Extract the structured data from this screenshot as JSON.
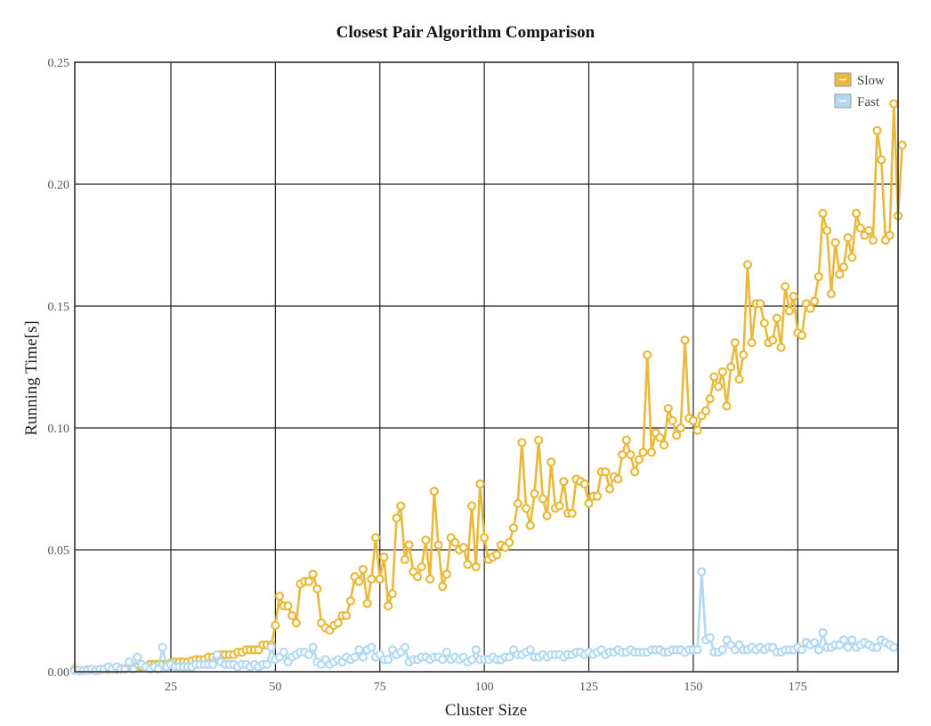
{
  "chart_data": {
    "type": "line",
    "title": "Closest Pair Algorithm Comparison",
    "xlabel": "Cluster Size",
    "ylabel": "Running Time[s]",
    "xlim": [
      2,
      199
    ],
    "ylim": [
      0,
      0.25
    ],
    "x_ticks": [
      25,
      50,
      75,
      100,
      125,
      150,
      175
    ],
    "y_ticks": [
      0,
      0.05,
      0.1,
      0.15,
      0.2,
      0.25
    ],
    "y_tick_labels": [
      "0.00",
      "0.05",
      "0.10",
      "0.15",
      "0.20",
      "0.25"
    ],
    "grid": true,
    "legend_position": "top-right",
    "x_start": 2,
    "series": [
      {
        "name": "Slow",
        "color": "#E8B93A",
        "values": [
          0.001,
          0.0005,
          0.0005,
          0.0008,
          0.0008,
          0.0006,
          0.0008,
          0.001,
          0.001,
          0.001,
          0.001,
          0.0012,
          0.0012,
          0.0015,
          0.0015,
          0.002,
          0.002,
          0.002,
          0.003,
          0.003,
          0.003,
          0.003,
          0.003,
          0.0035,
          0.004,
          0.004,
          0.004,
          0.004,
          0.0045,
          0.005,
          0.005,
          0.005,
          0.006,
          0.006,
          0.006,
          0.007,
          0.007,
          0.007,
          0.007,
          0.008,
          0.008,
          0.009,
          0.009,
          0.009,
          0.009,
          0.011,
          0.011,
          0.011,
          0.019,
          0.031,
          0.027,
          0.027,
          0.023,
          0.02,
          0.036,
          0.037,
          0.037,
          0.04,
          0.034,
          0.02,
          0.018,
          0.017,
          0.019,
          0.02,
          0.023,
          0.023,
          0.029,
          0.039,
          0.037,
          0.042,
          0.028,
          0.038,
          0.055,
          0.038,
          0.047,
          0.027,
          0.032,
          0.063,
          0.068,
          0.046,
          0.052,
          0.041,
          0.039,
          0.043,
          0.054,
          0.038,
          0.074,
          0.052,
          0.035,
          0.04,
          0.055,
          0.053,
          0.05,
          0.051,
          0.044,
          0.068,
          0.043,
          0.077,
          0.055,
          0.046,
          0.047,
          0.048,
          0.052,
          0.051,
          0.053,
          0.059,
          0.069,
          0.094,
          0.067,
          0.06,
          0.073,
          0.095,
          0.071,
          0.064,
          0.086,
          0.067,
          0.068,
          0.078,
          0.065,
          0.065,
          0.079,
          0.078,
          0.077,
          0.069,
          0.072,
          0.072,
          0.082,
          0.082,
          0.075,
          0.08,
          0.079,
          0.089,
          0.095,
          0.089,
          0.082,
          0.087,
          0.09,
          0.13,
          0.09,
          0.098,
          0.096,
          0.093,
          0.108,
          0.103,
          0.097,
          0.1,
          0.136,
          0.104,
          0.103,
          0.099,
          0.105,
          0.107,
          0.112,
          0.121,
          0.117,
          0.123,
          0.109,
          0.125,
          0.135,
          0.12,
          0.13,
          0.167,
          0.135,
          0.151,
          0.151,
          0.143,
          0.135,
          0.136,
          0.145,
          0.133,
          0.158,
          0.148,
          0.154,
          0.139,
          0.138,
          0.151,
          0.149,
          0.152,
          0.162,
          0.188,
          0.181,
          0.155,
          0.176,
          0.163,
          0.166,
          0.178,
          0.17,
          0.188,
          0.182,
          0.179,
          0.181,
          0.177,
          0.222,
          0.21,
          0.177,
          0.179,
          0.233,
          0.187,
          0.216
        ]
      },
      {
        "name": "Fast",
        "color": "#B3D9F2",
        "values": [
          0.0005,
          0.0005,
          0.0005,
          0.0005,
          0.001,
          0.0005,
          0.001,
          0.001,
          0.002,
          0.001,
          0.002,
          0.001,
          0.001,
          0.004,
          0.001,
          0.006,
          0.003,
          0.002,
          0.001,
          0.002,
          0.001,
          0.01,
          0.002,
          0.003,
          0.002,
          0.002,
          0.002,
          0.002,
          0.002,
          0.003,
          0.003,
          0.003,
          0.003,
          0.003,
          0.007,
          0.004,
          0.003,
          0.003,
          0.003,
          0.002,
          0.003,
          0.003,
          0.002,
          0.003,
          0.002,
          0.003,
          0.003,
          0.01,
          0.005,
          0.006,
          0.008,
          0.004,
          0.006,
          0.007,
          0.008,
          0.008,
          0.007,
          0.01,
          0.004,
          0.003,
          0.005,
          0.003,
          0.004,
          0.005,
          0.004,
          0.006,
          0.005,
          0.006,
          0.009,
          0.006,
          0.009,
          0.01,
          0.006,
          0.007,
          0.005,
          0.005,
          0.009,
          0.007,
          0.008,
          0.01,
          0.004,
          0.005,
          0.005,
          0.006,
          0.006,
          0.005,
          0.006,
          0.006,
          0.005,
          0.008,
          0.005,
          0.006,
          0.005,
          0.006,
          0.004,
          0.005,
          0.009,
          0.005,
          0.005,
          0.005,
          0.006,
          0.005,
          0.005,
          0.006,
          0.006,
          0.009,
          0.007,
          0.007,
          0.008,
          0.009,
          0.006,
          0.006,
          0.007,
          0.006,
          0.007,
          0.007,
          0.007,
          0.006,
          0.007,
          0.007,
          0.008,
          0.008,
          0.007,
          0.008,
          0.007,
          0.008,
          0.009,
          0.007,
          0.008,
          0.008,
          0.009,
          0.008,
          0.008,
          0.009,
          0.008,
          0.008,
          0.008,
          0.008,
          0.009,
          0.009,
          0.009,
          0.008,
          0.008,
          0.009,
          0.009,
          0.009,
          0.008,
          0.009,
          0.009,
          0.009,
          0.041,
          0.013,
          0.014,
          0.008,
          0.008,
          0.009,
          0.013,
          0.011,
          0.009,
          0.011,
          0.009,
          0.009,
          0.01,
          0.009,
          0.01,
          0.009,
          0.01,
          0.01,
          0.008,
          0.008,
          0.009,
          0.009,
          0.009,
          0.01,
          0.009,
          0.012,
          0.011,
          0.012,
          0.009,
          0.016,
          0.01,
          0.01,
          0.011,
          0.011,
          0.013,
          0.01,
          0.013,
          0.01,
          0.011,
          0.012,
          0.011,
          0.01,
          0.01,
          0.013,
          0.012,
          0.011,
          0.01
        ]
      }
    ]
  }
}
